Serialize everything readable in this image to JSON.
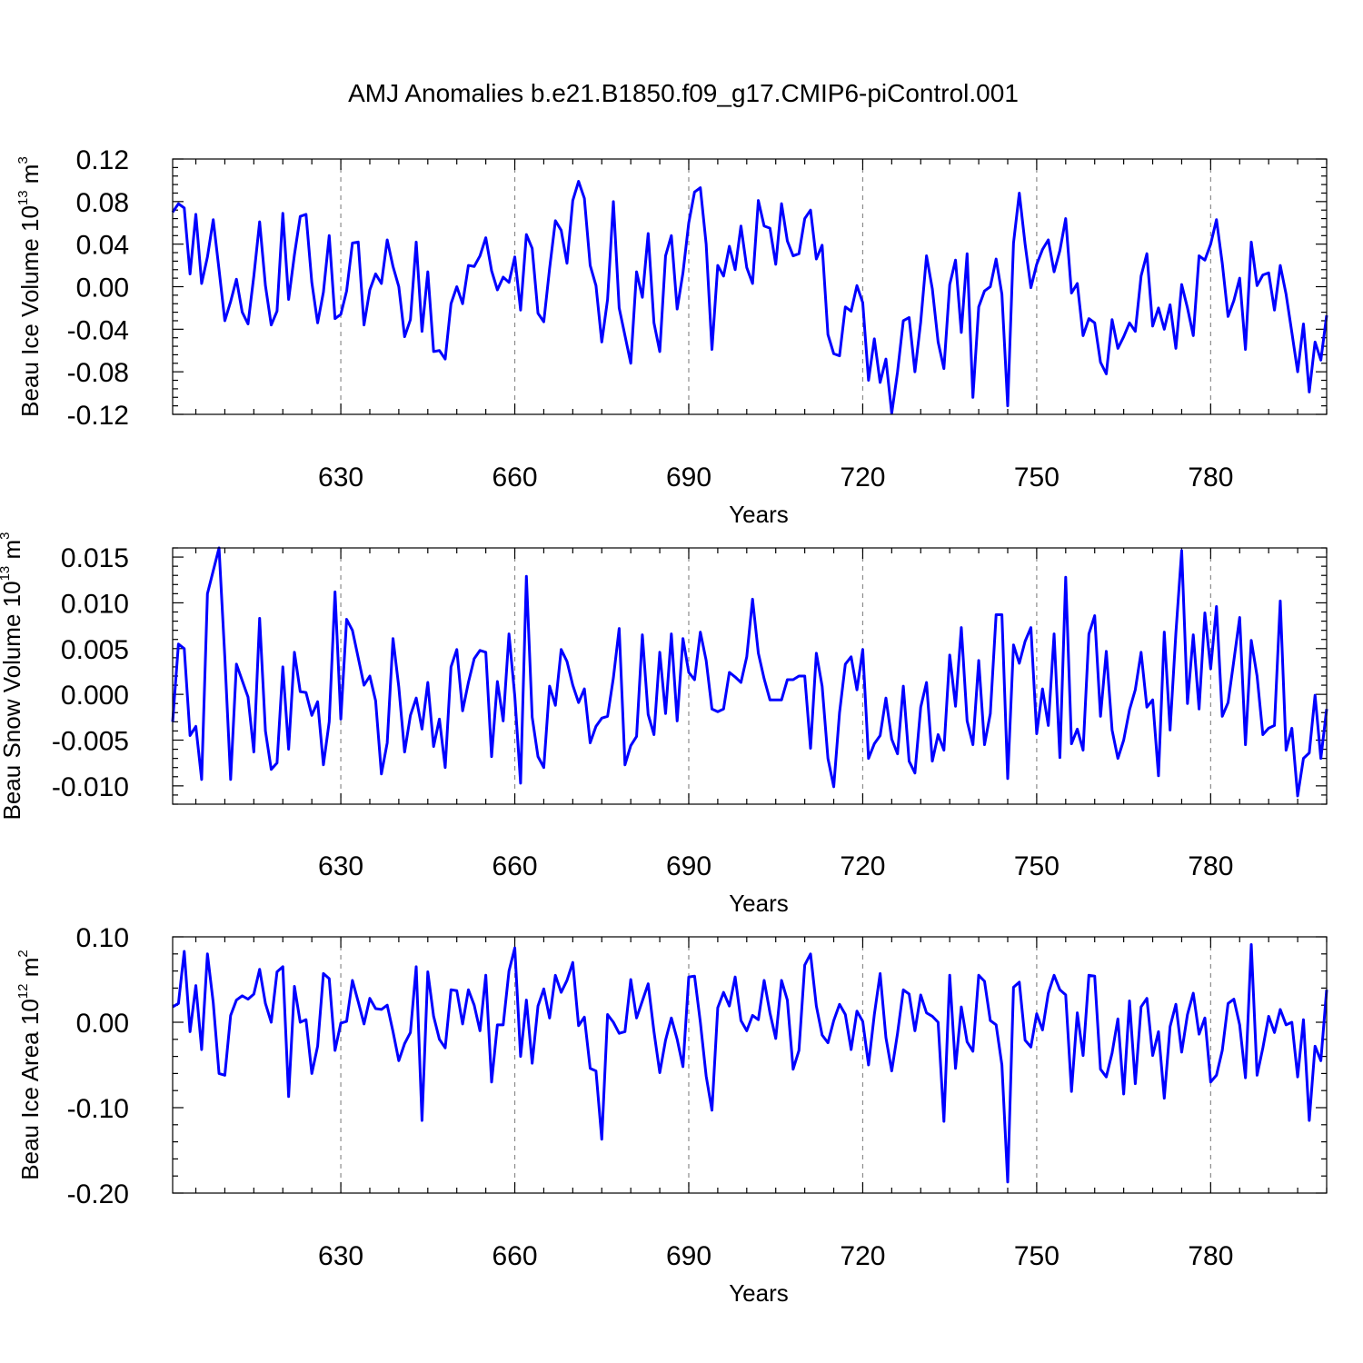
{
  "title": "AMJ Anomalies b.e21.B1850.f09_g17.CMIP6-piControl.001",
  "chart_data": [
    {
      "type": "line",
      "ylabel": "Beau Ice Volume 10",
      "ylabel_sup": "13",
      "ylabel_unit": " m",
      "ylabel_unit_sup": "3",
      "xlabel": "Years",
      "xlim": [
        601,
        800
      ],
      "ylim": [
        -0.12,
        0.12
      ],
      "xticks": [
        630,
        660,
        690,
        720,
        750,
        780
      ],
      "xtick_labels": [
        "630",
        "660",
        "690",
        "720",
        "750",
        "780"
      ],
      "yticks": [
        -0.12,
        -0.08,
        -0.04,
        0.0,
        0.04,
        0.08,
        0.12
      ],
      "ytick_labels": [
        "-0.12",
        "-0.08",
        "-0.04",
        "0.00",
        "0.04",
        "0.08",
        "0.12"
      ],
      "grid": "x dashed",
      "series": [
        {
          "color": "#0000ff",
          "x_start": 601,
          "values": [
            0.07,
            0.078,
            0.074,
            0.012,
            0.068,
            0.003,
            0.028,
            0.063,
            0.016,
            -0.032,
            -0.014,
            0.007,
            -0.024,
            -0.035,
            0.01,
            0.061,
            0.001,
            -0.036,
            -0.023,
            0.069,
            -0.012,
            0.03,
            0.066,
            0.068,
            0.004,
            -0.034,
            -0.005,
            0.048,
            -0.03,
            -0.026,
            -0.004,
            0.041,
            0.042,
            -0.036,
            -0.003,
            0.012,
            0.003,
            0.044,
            0.019,
            0.0,
            -0.047,
            -0.031,
            0.042,
            -0.042,
            0.014,
            -0.061,
            -0.06,
            -0.068,
            -0.016,
            0.0,
            -0.016,
            0.02,
            0.019,
            0.029,
            0.046,
            0.015,
            -0.003,
            0.009,
            0.004,
            0.028,
            -0.022,
            0.049,
            0.036,
            -0.025,
            -0.033,
            0.017,
            0.062,
            0.053,
            0.022,
            0.081,
            0.099,
            0.083,
            0.02,
            0.001,
            -0.052,
            -0.012,
            0.08,
            -0.02,
            -0.046,
            -0.072,
            0.014,
            -0.01,
            0.05,
            -0.034,
            -0.061,
            0.029,
            0.048,
            -0.021,
            0.013,
            0.06,
            0.089,
            0.093,
            0.04,
            -0.059,
            0.02,
            0.01,
            0.038,
            0.016,
            0.057,
            0.018,
            0.003,
            0.081,
            0.057,
            0.055,
            0.021,
            0.078,
            0.043,
            0.029,
            0.031,
            0.064,
            0.072,
            0.026,
            0.039,
            -0.045,
            -0.063,
            -0.065,
            -0.019,
            -0.023,
            0.001,
            -0.015,
            -0.088,
            -0.049,
            -0.09,
            -0.068,
            -0.119,
            -0.08,
            -0.032,
            -0.029,
            -0.08,
            -0.033,
            0.029,
            -0.002,
            -0.052,
            -0.077,
            0.002,
            0.025,
            -0.043,
            0.031,
            -0.104,
            -0.019,
            -0.004,
            0.0,
            0.026,
            -0.007,
            -0.112,
            0.041,
            0.088,
            0.04,
            -0.001,
            0.021,
            0.035,
            0.044,
            0.014,
            0.034,
            0.064,
            -0.006,
            0.003,
            -0.046,
            -0.03,
            -0.034,
            -0.071,
            -0.082,
            -0.031,
            -0.058,
            -0.047,
            -0.034,
            -0.042,
            0.01,
            0.031,
            -0.037,
            -0.02,
            -0.04,
            -0.017,
            -0.058,
            0.002,
            -0.02,
            -0.046,
            0.029,
            0.025,
            0.04,
            0.063,
            0.022,
            -0.028,
            -0.013,
            0.008,
            -0.059,
            0.042,
            0.001,
            0.011,
            0.013,
            -0.022,
            0.02,
            -0.007,
            -0.043,
            -0.08,
            -0.035,
            -0.099,
            -0.052,
            -0.069,
            -0.027
          ]
        }
      ]
    },
    {
      "type": "line",
      "ylabel": "Beau Snow Volume 10",
      "ylabel_sup": "13",
      "ylabel_unit": " m",
      "ylabel_unit_sup": "3",
      "xlabel": "Years",
      "xlim": [
        601,
        800
      ],
      "ylim": [
        -0.012,
        0.016
      ],
      "xticks": [
        630,
        660,
        690,
        720,
        750,
        780
      ],
      "xtick_labels": [
        "630",
        "660",
        "690",
        "720",
        "750",
        "780"
      ],
      "yticks": [
        -0.01,
        -0.005,
        0.0,
        0.005,
        0.01,
        0.015
      ],
      "ytick_labels": [
        "-0.010",
        "-0.005",
        "0.000",
        "0.005",
        "0.010",
        "0.015"
      ],
      "grid": "x dashed",
      "series": [
        {
          "color": "#0000ff",
          "x_start": 601,
          "values": [
            -0.003,
            0.0055,
            0.005,
            -0.0045,
            -0.0035,
            -0.0093,
            0.011,
            0.0135,
            0.016,
            0.004,
            -0.0093,
            0.0033,
            0.0015,
            -0.0003,
            -0.0063,
            0.0083,
            -0.004,
            -0.0082,
            -0.0075,
            0.003,
            -0.006,
            0.0046,
            0.0003,
            0.0002,
            -0.0023,
            -0.0008,
            -0.0077,
            -0.003,
            0.0112,
            -0.0027,
            0.0082,
            0.007,
            0.004,
            0.001,
            0.002,
            -0.0007,
            -0.0087,
            -0.0053,
            0.0061,
            0.0008,
            -0.0063,
            -0.0023,
            -0.0004,
            -0.0038,
            0.0013,
            -0.0057,
            -0.0027,
            -0.008,
            0.003,
            0.0049,
            -0.0018,
            0.0013,
            0.0039,
            0.0048,
            0.0046,
            -0.0068,
            0.0014,
            -0.0029,
            0.0066,
            -0.0002,
            -0.0097,
            0.0129,
            -0.0025,
            -0.0068,
            -0.008,
            0.0009,
            -0.0012,
            0.0049,
            0.0036,
            0.001,
            -0.0009,
            0.0006,
            -0.0053,
            -0.0035,
            -0.0026,
            -0.0024,
            0.0018,
            0.0072,
            -0.0077,
            -0.0056,
            -0.0046,
            0.0065,
            -0.0022,
            -0.0044,
            0.0046,
            -0.0021,
            0.0066,
            -0.0029,
            0.0061,
            0.0024,
            0.0016,
            0.0068,
            0.0037,
            -0.0016,
            -0.0019,
            -0.0016,
            0.0024,
            0.0019,
            0.0013,
            0.0041,
            0.0104,
            0.0045,
            0.0017,
            -0.0006,
            -0.0006,
            -0.0006,
            0.0016,
            0.0016,
            0.002,
            0.002,
            -0.0059,
            0.0045,
            0.0009,
            -0.007,
            -0.0101,
            -0.002,
            0.0033,
            0.0041,
            0.0005,
            0.0049,
            -0.007,
            -0.0054,
            -0.0045,
            -0.0004,
            -0.0049,
            -0.0065,
            0.0009,
            -0.0073,
            -0.0086,
            -0.0014,
            0.0013,
            -0.0073,
            -0.0044,
            -0.0061,
            0.0043,
            -0.0013,
            0.0073,
            -0.0029,
            -0.0055,
            0.0037,
            -0.0055,
            -0.0021,
            0.0087,
            0.0087,
            -0.0092,
            0.0054,
            0.0034,
            0.0058,
            0.0073,
            -0.0043,
            0.0006,
            -0.0034,
            0.0066,
            -0.0069,
            0.0128,
            -0.0054,
            -0.0038,
            -0.0061,
            0.0066,
            0.0086,
            -0.0024,
            0.0047,
            -0.0039,
            -0.007,
            -0.005,
            -0.0017,
            0.0005,
            0.0046,
            -0.0014,
            -0.0006,
            -0.0089,
            0.0068,
            -0.0039,
            0.0067,
            0.0157,
            -0.001,
            0.0065,
            -0.0016,
            0.0089,
            0.0028,
            0.0096,
            -0.0024,
            -0.0009,
            0.0037,
            0.0084,
            -0.0055,
            0.0059,
            0.002,
            -0.0044,
            -0.0037,
            -0.0034,
            0.0102,
            -0.0061,
            -0.0037,
            -0.0111,
            -0.007,
            -0.0064,
            -0.0001,
            -0.007,
            -0.0016
          ]
        }
      ]
    },
    {
      "type": "line",
      "ylabel": "Beau Ice Area 10",
      "ylabel_sup": "12",
      "ylabel_unit": " m",
      "ylabel_unit_sup": "2",
      "xlabel": "Years",
      "xlim": [
        601,
        800
      ],
      "ylim": [
        -0.2,
        0.1
      ],
      "xticks": [
        630,
        660,
        690,
        720,
        750,
        780
      ],
      "xtick_labels": [
        "630",
        "660",
        "690",
        "720",
        "750",
        "780"
      ],
      "yticks": [
        -0.2,
        -0.1,
        0.0,
        0.1
      ],
      "ytick_labels": [
        "-0.20",
        "-0.10",
        "0.00",
        "0.10"
      ],
      "grid": "x dashed",
      "series": [
        {
          "color": "#0000ff",
          "x_start": 601,
          "values": [
            0.018,
            0.022,
            0.083,
            -0.011,
            0.043,
            -0.032,
            0.08,
            0.023,
            -0.06,
            -0.062,
            0.008,
            0.026,
            0.031,
            0.027,
            0.033,
            0.062,
            0.022,
            0.0,
            0.059,
            0.065,
            -0.087,
            0.042,
            0.0,
            0.003,
            -0.06,
            -0.028,
            0.057,
            0.051,
            -0.033,
            -0.001,
            0.001,
            0.049,
            0.024,
            -0.002,
            0.028,
            0.016,
            0.015,
            0.02,
            -0.011,
            -0.045,
            -0.025,
            -0.012,
            0.065,
            -0.115,
            0.059,
            0.007,
            -0.02,
            -0.03,
            0.038,
            0.037,
            -0.002,
            0.038,
            0.02,
            -0.01,
            0.055,
            -0.07,
            -0.003,
            -0.003,
            0.06,
            0.087,
            -0.04,
            0.026,
            -0.048,
            0.019,
            0.039,
            0.005,
            0.055,
            0.035,
            0.049,
            0.07,
            -0.004,
            0.006,
            -0.054,
            -0.057,
            -0.137,
            0.009,
            0.0,
            -0.013,
            -0.011,
            0.05,
            0.005,
            0.025,
            0.045,
            -0.011,
            -0.059,
            -0.021,
            0.005,
            -0.02,
            -0.052,
            0.053,
            0.054,
            0.0,
            -0.063,
            -0.103,
            0.017,
            0.035,
            0.019,
            0.053,
            0.002,
            -0.01,
            0.008,
            0.003,
            0.049,
            0.011,
            -0.019,
            0.049,
            0.026,
            -0.055,
            -0.033,
            0.067,
            0.08,
            0.019,
            -0.015,
            -0.024,
            0.002,
            0.021,
            0.009,
            -0.032,
            0.013,
            0.001,
            -0.05,
            0.009,
            0.057,
            -0.018,
            -0.057,
            -0.013,
            0.038,
            0.033,
            -0.01,
            0.032,
            0.011,
            0.007,
            0.0,
            -0.116,
            0.055,
            -0.054,
            0.018,
            -0.023,
            -0.034,
            0.055,
            0.048,
            0.002,
            -0.003,
            -0.05,
            -0.187,
            0.041,
            0.047,
            -0.021,
            -0.029,
            0.01,
            -0.009,
            0.034,
            0.055,
            0.038,
            0.032,
            -0.081,
            0.011,
            -0.039,
            0.055,
            0.054,
            -0.055,
            -0.064,
            -0.036,
            0.004,
            -0.084,
            0.025,
            -0.072,
            0.018,
            0.028,
            -0.039,
            -0.011,
            -0.089,
            -0.005,
            0.021,
            -0.035,
            0.009,
            0.034,
            -0.014,
            0.005,
            -0.07,
            -0.062,
            -0.033,
            0.022,
            0.027,
            -0.003,
            -0.065,
            0.091,
            -0.062,
            -0.03,
            0.007,
            -0.012,
            0.015,
            -0.003,
            0.0,
            -0.064,
            0.003,
            -0.115,
            -0.028,
            -0.045,
            0.038
          ]
        }
      ]
    }
  ]
}
